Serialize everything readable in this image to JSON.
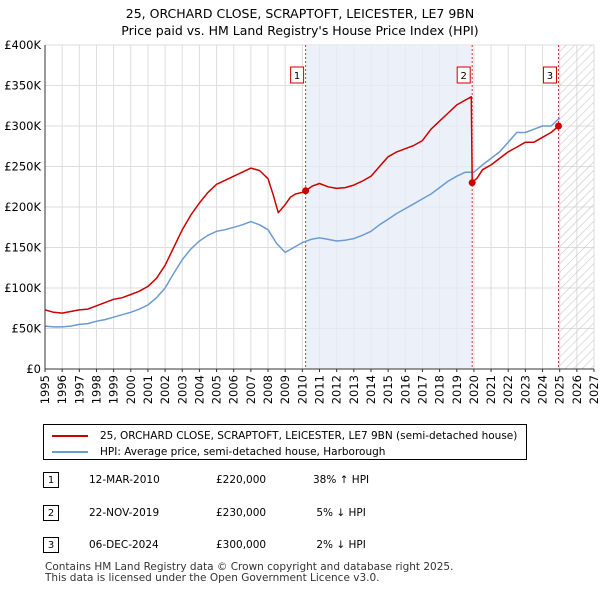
{
  "chart_data": {
    "type": "line",
    "title": "25, ORCHARD CLOSE, SCRAPTOFT, LEICESTER, LE7 9BN",
    "subtitle": "Price paid vs. HM Land Registry's House Price Index (HPI)",
    "xlim": [
      1995,
      2027
    ],
    "ylim": [
      0,
      400000
    ],
    "x_ticks": [
      "1995",
      "1996",
      "1997",
      "1998",
      "1999",
      "2000",
      "2001",
      "2002",
      "2003",
      "2004",
      "2005",
      "2006",
      "2007",
      "2008",
      "2009",
      "2010",
      "2011",
      "2012",
      "2013",
      "2014",
      "2015",
      "2016",
      "2017",
      "2018",
      "2019",
      "2020",
      "2021",
      "2022",
      "2023",
      "2024",
      "2025",
      "2026",
      "2027"
    ],
    "y_ticks": [
      "£0",
      "£50K",
      "£100K",
      "£150K",
      "£200K",
      "£250K",
      "£300K",
      "£350K",
      "£400K"
    ],
    "y_tick_values": [
      0,
      50000,
      100000,
      150000,
      200000,
      250000,
      300000,
      350000,
      400000
    ],
    "shaded_period": [
      2010.19,
      2019.9
    ],
    "future_hatch_from": 2025.0,
    "series": [
      {
        "name": "25, ORCHARD CLOSE, SCRAPTOFT, LEICESTER, LE7 9BN (semi-detached house)",
        "color": "#cc0000",
        "x": [
          1995.0,
          1995.5,
          1996.0,
          1996.5,
          1997.0,
          1997.5,
          1998.0,
          1998.5,
          1999.0,
          1999.5,
          2000.0,
          2000.5,
          2001.0,
          2001.5,
          2002.0,
          2002.5,
          2003.0,
          2003.5,
          2004.0,
          2004.5,
          2005.0,
          2005.5,
          2006.0,
          2006.5,
          2007.0,
          2007.5,
          2008.0,
          2008.3,
          2008.6,
          2009.0,
          2009.3,
          2009.6,
          2010.0,
          2010.19,
          2010.6,
          2011.0,
          2011.5,
          2012.0,
          2012.5,
          2013.0,
          2013.5,
          2014.0,
          2014.5,
          2015.0,
          2015.5,
          2016.0,
          2016.5,
          2017.0,
          2017.5,
          2018.0,
          2018.5,
          2019.0,
          2019.5,
          2019.85,
          2019.9,
          2020.2,
          2020.5,
          2021.0,
          2021.5,
          2022.0,
          2022.5,
          2023.0,
          2023.5,
          2024.0,
          2024.5,
          2024.93
        ],
        "values": [
          73000,
          70000,
          69000,
          71000,
          73000,
          74000,
          78000,
          82000,
          86000,
          88000,
          92000,
          96000,
          102000,
          112000,
          128000,
          150000,
          172000,
          190000,
          205000,
          218000,
          228000,
          233000,
          238000,
          243000,
          248000,
          245000,
          235000,
          215000,
          193000,
          203000,
          212000,
          216000,
          218000,
          220000,
          226000,
          229000,
          225000,
          223000,
          224000,
          227000,
          232000,
          238000,
          250000,
          262000,
          268000,
          272000,
          276000,
          282000,
          296000,
          306000,
          316000,
          326000,
          332000,
          336000,
          230000,
          236000,
          246000,
          252000,
          260000,
          268000,
          274000,
          280000,
          280000,
          286000,
          292000,
          300000
        ]
      },
      {
        "name": "HPI: Average price, semi-detached house, Harborough",
        "color": "#6a9bd1",
        "x": [
          1995.0,
          1995.5,
          1996.0,
          1996.5,
          1997.0,
          1997.5,
          1998.0,
          1998.5,
          1999.0,
          1999.5,
          2000.0,
          2000.5,
          2001.0,
          2001.5,
          2002.0,
          2002.5,
          2003.0,
          2003.5,
          2004.0,
          2004.5,
          2005.0,
          2005.5,
          2006.0,
          2006.5,
          2007.0,
          2007.5,
          2008.0,
          2008.5,
          2009.0,
          2009.5,
          2010.0,
          2010.5,
          2011.0,
          2011.5,
          2012.0,
          2012.5,
          2013.0,
          2013.5,
          2014.0,
          2014.5,
          2015.0,
          2015.5,
          2016.0,
          2016.5,
          2017.0,
          2017.5,
          2018.0,
          2018.5,
          2019.0,
          2019.5,
          2020.0,
          2020.5,
          2021.0,
          2021.5,
          2022.0,
          2022.5,
          2023.0,
          2023.5,
          2024.0,
          2024.5,
          2025.0
        ],
        "values": [
          53000,
          52000,
          52000,
          53000,
          55000,
          56000,
          59000,
          61000,
          64000,
          67000,
          70000,
          74000,
          79000,
          88000,
          100000,
          118000,
          135000,
          148000,
          158000,
          165000,
          170000,
          172000,
          175000,
          178000,
          182000,
          178000,
          172000,
          155000,
          144000,
          150000,
          156000,
          160000,
          162000,
          160000,
          158000,
          159000,
          161000,
          165000,
          170000,
          178000,
          185000,
          192000,
          198000,
          204000,
          210000,
          216000,
          224000,
          232000,
          238000,
          243000,
          243000,
          252000,
          260000,
          268000,
          280000,
          292000,
          292000,
          296000,
          300000,
          300000,
          310000
        ]
      }
    ],
    "annotations": [
      {
        "label": "1",
        "x": 2010.19,
        "y": 220000
      },
      {
        "label": "2",
        "x": 2019.9,
        "y": 230000
      },
      {
        "label": "3",
        "x": 2024.93,
        "y": 300000
      }
    ]
  },
  "legend": {
    "property_label": "25, ORCHARD CLOSE, SCRAPTOFT, LEICESTER, LE7 9BN (semi-detached house)",
    "hpi_label": "HPI: Average price, semi-detached house, Harborough"
  },
  "sales": [
    {
      "num": "1",
      "date": "12-MAR-2010",
      "price": "£220,000",
      "hpi": "38% ↑ HPI"
    },
    {
      "num": "2",
      "date": "22-NOV-2019",
      "price": "£230,000",
      "hpi": " 5% ↓ HPI"
    },
    {
      "num": "3",
      "date": "06-DEC-2024",
      "price": "£300,000",
      "hpi": " 2% ↓ HPI"
    }
  ],
  "footer": {
    "line1": "Contains HM Land Registry data © Crown copyright and database right 2025.",
    "line2": "This data is licensed under the Open Government Licence v3.0."
  },
  "colors": {
    "property": "#cc0000",
    "hpi": "#6a9bd1",
    "shade": "#e6ecf7"
  }
}
